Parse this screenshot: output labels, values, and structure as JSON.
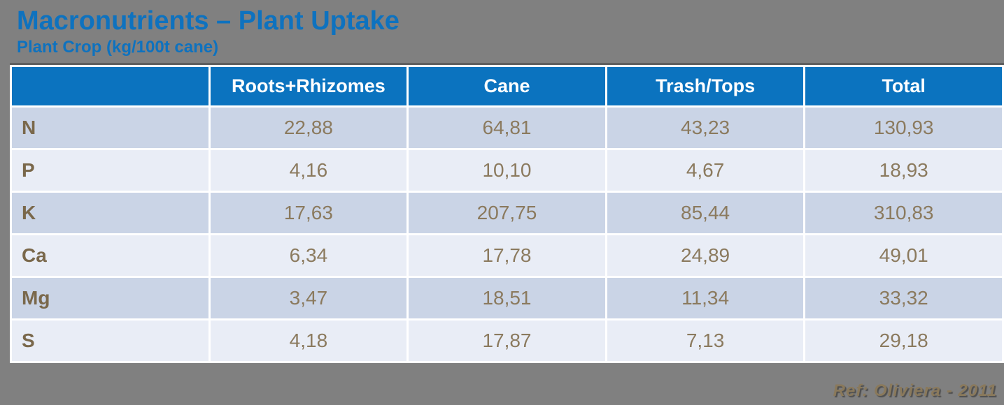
{
  "slide": {
    "title": "Macronutrients – Plant Uptake",
    "subtitle": "Plant Crop (kg/100t cane)",
    "reference": "Ref: Oliviera - 2011"
  },
  "colors": {
    "background": "#808080",
    "title_blue": "#0e72bf",
    "header_blue": "#0b73bf",
    "row_dark": "#cad4e6",
    "row_light": "#e9edf6",
    "value_text": "#8b7a5e",
    "label_text": "#7a684b",
    "reference_text": "#8a795b",
    "grid_white": "#ffffff"
  },
  "chart_data": {
    "type": "table",
    "title": "Macronutrients – Plant Uptake",
    "subtitle": "Plant Crop (kg/100t cane)",
    "units": "kg/100t cane",
    "decimal_separator": ",",
    "columns": [
      "",
      "Roots+Rhizomes",
      "Cane",
      "Trash/Tops",
      "Total"
    ],
    "rows": [
      {
        "label": "N",
        "values": [
          "22,88",
          "64,81",
          "43,23",
          "130,93"
        ]
      },
      {
        "label": "P",
        "values": [
          "4,16",
          "10,10",
          "4,67",
          "18,93"
        ]
      },
      {
        "label": "K",
        "values": [
          "17,63",
          "207,75",
          "85,44",
          "310,83"
        ]
      },
      {
        "label": "Ca",
        "values": [
          "6,34",
          "17,78",
          "24,89",
          "49,01"
        ]
      },
      {
        "label": "Mg",
        "values": [
          "3,47",
          "18,51",
          "11,34",
          "33,32"
        ]
      },
      {
        "label": "S",
        "values": [
          "4,18",
          "17,87",
          "7,13",
          "29,18"
        ]
      }
    ],
    "rows_numeric": [
      {
        "label": "N",
        "values": [
          22.88,
          64.81,
          43.23,
          130.93
        ]
      },
      {
        "label": "P",
        "values": [
          4.16,
          10.1,
          4.67,
          18.93
        ]
      },
      {
        "label": "K",
        "values": [
          17.63,
          207.75,
          85.44,
          310.83
        ]
      },
      {
        "label": "Ca",
        "values": [
          6.34,
          17.78,
          24.89,
          49.01
        ]
      },
      {
        "label": "Mg",
        "values": [
          3.47,
          18.51,
          11.34,
          33.32
        ]
      },
      {
        "label": "S",
        "values": [
          4.18,
          17.87,
          7.13,
          29.18
        ]
      }
    ]
  }
}
